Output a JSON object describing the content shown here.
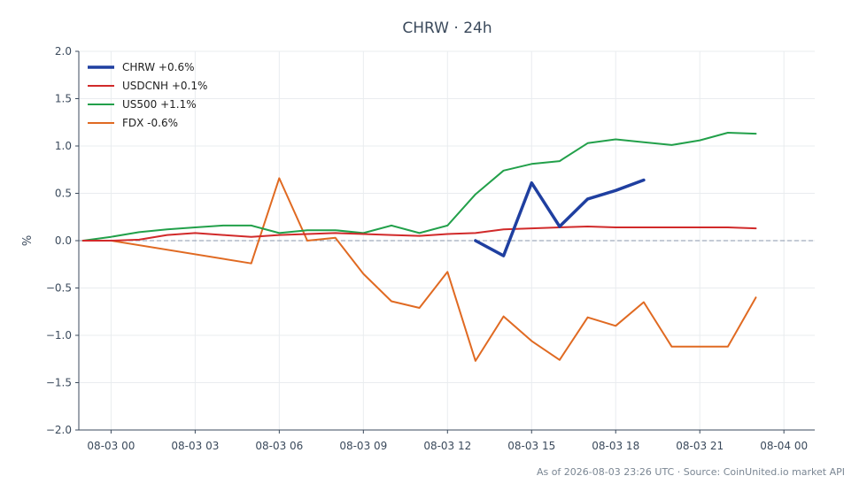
{
  "chart_data": {
    "type": "line",
    "title": "CHRW · 24h",
    "ylabel": "%",
    "xlabel": "",
    "ylim": [
      -2.0,
      2.0
    ],
    "yticks": [
      "2.0",
      "1.5",
      "1.0",
      "0.5",
      "0.0",
      "−0.5",
      "−1.0",
      "−1.5",
      "−2.0"
    ],
    "ytick_values": [
      2.0,
      1.5,
      1.0,
      0.5,
      0.0,
      -0.5,
      -1.0,
      -1.5,
      -2.0
    ],
    "xlim_hours": [
      -1.15,
      25.1
    ],
    "xticks": [
      "08-03 00",
      "08-03 03",
      "08-03 06",
      "08-03 09",
      "08-03 12",
      "08-03 15",
      "08-03 18",
      "08-03 21",
      "08-04 00"
    ],
    "xtick_hours": [
      0,
      3,
      6,
      9,
      12,
      15,
      18,
      21,
      24
    ],
    "grid": true,
    "legend_position": "top-left",
    "reference_line": 0.0,
    "series": [
      {
        "name": "CHRW +0.6%",
        "color": "#1f3fa0",
        "width": 3.5,
        "x": [
          13,
          14,
          15,
          16,
          17,
          18,
          19
        ],
        "values": [
          0.0,
          -0.16,
          0.61,
          0.15,
          0.44,
          0.53,
          0.64
        ]
      },
      {
        "name": "USDCNH +0.1%",
        "color": "#d12a2a",
        "width": 2,
        "x": [
          -1,
          0,
          1,
          2,
          3,
          4,
          5,
          6,
          7,
          8,
          9,
          10,
          11,
          12,
          13,
          14,
          15,
          16,
          17,
          18,
          19,
          20,
          21,
          22,
          23
        ],
        "values": [
          0.0,
          0.0,
          0.01,
          0.06,
          0.08,
          0.06,
          0.04,
          0.06,
          0.07,
          0.08,
          0.07,
          0.06,
          0.05,
          0.07,
          0.08,
          0.12,
          0.13,
          0.14,
          0.15,
          0.14,
          0.14,
          0.14,
          0.14,
          0.14,
          0.13
        ]
      },
      {
        "name": "US500 +1.1%",
        "color": "#22a04a",
        "width": 2,
        "x": [
          -1,
          0,
          1,
          2,
          3,
          4,
          5,
          6,
          7,
          8,
          9,
          10,
          11,
          12,
          13,
          14,
          15,
          16,
          17,
          18,
          19,
          20,
          21,
          22,
          23
        ],
        "values": [
          0.0,
          0.04,
          0.09,
          0.12,
          0.14,
          0.16,
          0.16,
          0.08,
          0.11,
          0.11,
          0.08,
          0.16,
          0.08,
          0.16,
          0.49,
          0.74,
          0.81,
          0.84,
          1.03,
          1.07,
          1.04,
          1.01,
          1.06,
          1.14,
          1.13
        ]
      },
      {
        "name": "FDX -0.6%",
        "color": "#e06a22",
        "width": 2,
        "x": [
          -1,
          0,
          5,
          6,
          7,
          8,
          9,
          10,
          11,
          12,
          13,
          14,
          15,
          16,
          17,
          18,
          19,
          20,
          21,
          22,
          23
        ],
        "values": [
          0.0,
          0.0,
          -0.24,
          0.66,
          0.0,
          0.03,
          -0.35,
          -0.64,
          -0.71,
          -0.33,
          -1.27,
          -0.8,
          -1.06,
          -1.26,
          -0.81,
          -0.9,
          -0.65,
          -1.12,
          -1.12,
          -1.12,
          -0.6
        ]
      }
    ]
  },
  "footer": "As of 2026-08-03 23:26 UTC · Source: CoinUnited.io market API"
}
